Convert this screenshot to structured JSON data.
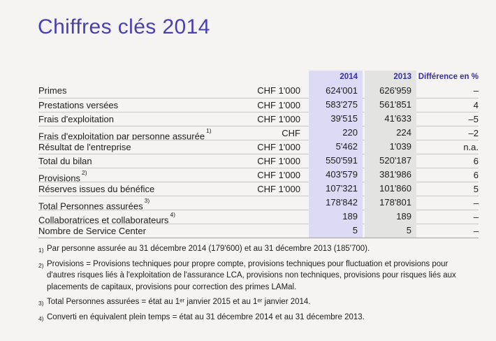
{
  "page": {
    "title": "Chiffres clés 2014",
    "background_color": "#f5f4f2",
    "title_color": "#4a3fad",
    "header_text_color": "#362fa0",
    "band_2014_color": "#dcdaf4",
    "band_2013_color": "#e3e3e1"
  },
  "table": {
    "columns": {
      "y2014": "2014",
      "y2013": "2013",
      "diff": "Différence en %"
    },
    "rows": [
      {
        "label": "Primes",
        "sup": "",
        "unit": "CHF 1'000",
        "v2014": "624'001",
        "v2013": "626'959",
        "diff": "–"
      },
      {
        "label": "Prestations versées",
        "sup": "",
        "unit": "CHF 1'000",
        "v2014": "583'275",
        "v2013": "561'851",
        "diff": "4"
      },
      {
        "label": "Frais d'exploitation",
        "sup": "",
        "unit": "CHF 1'000",
        "v2014": "39'515",
        "v2013": "41'633",
        "diff": "–5"
      },
      {
        "label": "Frais d'exploitation par personne assurée",
        "sup": "1)",
        "unit": "CHF",
        "v2014": "220",
        "v2013": "224",
        "diff": "–2"
      },
      {
        "label": "Résultat de l'entreprise",
        "sup": "",
        "unit": "CHF 1'000",
        "v2014": "5'462",
        "v2013": "1'039",
        "diff": "n.a."
      },
      {
        "label": "Total du bilan",
        "sup": "",
        "unit": "CHF 1'000",
        "v2014": "550'591",
        "v2013": "520'187",
        "diff": "6"
      },
      {
        "label": "Provisions",
        "sup": "2)",
        "unit": "CHF 1'000",
        "v2014": "403'579",
        "v2013": "381'986",
        "diff": "6"
      },
      {
        "label": "Réserves issues du bénéfice",
        "sup": "",
        "unit": "CHF 1'000",
        "v2014": "107'321",
        "v2013": "101'860",
        "diff": "5"
      },
      {
        "label": "Total Personnes assurées",
        "sup": "3)",
        "unit": "",
        "v2014": "178'842",
        "v2013": "178'801",
        "diff": "–"
      },
      {
        "label": "Collaboratrices et collaborateurs",
        "sup": "4)",
        "unit": "",
        "v2014": "189",
        "v2013": "189",
        "diff": "–"
      },
      {
        "label": "Nombre de Service Center",
        "sup": "",
        "unit": "",
        "v2014": "5",
        "v2013": "5",
        "diff": "–"
      }
    ]
  },
  "footnotes": [
    {
      "marker": "1)",
      "text": "Par personne assurée au 31 décembre 2014 (179'600) et au 31 décembre 2013 (185'700)."
    },
    {
      "marker": "2)",
      "text": "Provisions = Provisions techniques pour propre compte, provisions techniques pour fluctuation et provisions pour d'autres risques liés à l'exploitation de l'assurance LCA, provisions non techniques, provisions pour risques liés aux placements de capitaux, provisions pour correction des primes LAMal."
    },
    {
      "marker": "3)",
      "text": "Total Personnes assurées = état au 1ᵉʳ janvier 2015 et au 1ᵉʳ janvier 2014."
    },
    {
      "marker": "4)",
      "text": "Converti en équivalent plein temps = état au 31 décembre 2014 et au 31 décembre 2013."
    }
  ]
}
